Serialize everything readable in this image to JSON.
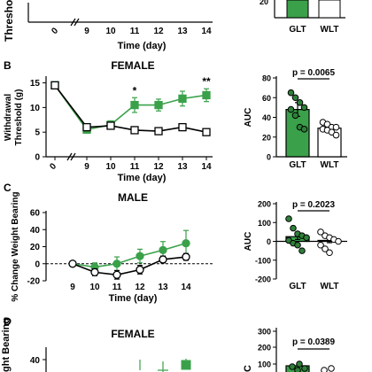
{
  "colors": {
    "glt": "#3aa14a",
    "wlt": "#ffffff",
    "axis": "#000000"
  },
  "panels": {
    "A": {
      "x_title": "Time (day)",
      "x_ticks": [
        "0",
        "9",
        "10",
        "11",
        "12",
        "13",
        "14"
      ],
      "y_label_fragment": "Threshold",
      "bar_y_tick": "20",
      "bar_labels": [
        "GLT",
        "WLT"
      ]
    },
    "B": {
      "letter": "B",
      "title": "FEMALE",
      "x_title": "Time (day)",
      "bar_labels": [
        "GLT",
        "WLT"
      ]
    },
    "C": {
      "letter": "C",
      "title": "MALE",
      "x_title": "Time (day)",
      "bar_labels": [
        "GLT",
        "WLT"
      ]
    },
    "D": {
      "letter": "D",
      "title": "FEMALE",
      "y_label_fragment": "ght Bearing",
      "bar_ylabel_fragment": "C"
    }
  },
  "chart_data": [
    {
      "id": "A-line",
      "type": "line",
      "x_ticks": [
        "0",
        "9",
        "10",
        "11",
        "12",
        "13",
        "14"
      ],
      "xlabel": "Time (day)",
      "ylabel": "Threshold"
    },
    {
      "id": "A-bar",
      "type": "bar",
      "categories": [
        "GLT",
        "WLT"
      ],
      "yticks": [
        20
      ]
    },
    {
      "id": "B-line",
      "type": "line",
      "title": "FEMALE",
      "xlabel": "Time (day)",
      "ylabel": "Withdrawal Threshold (g)",
      "x": [
        0,
        9,
        10,
        11,
        12,
        13,
        14
      ],
      "ylim": [
        0,
        16
      ],
      "yticks": [
        0,
        5,
        10,
        15
      ],
      "series": [
        {
          "values": [
            14.5,
            5.5,
            6.5,
            10.5,
            10.5,
            11.8,
            12.5
          ],
          "err": [
            0.5,
            0.5,
            0.8,
            1.5,
            1.2,
            1.5,
            1.3
          ]
        },
        {
          "values": [
            14.5,
            6.0,
            6.3,
            5.4,
            5.2,
            6.0,
            5.0
          ],
          "err": [
            0.4,
            0.4,
            0.5,
            0.4,
            0.3,
            0.4,
            0.6
          ]
        }
      ],
      "annotations": [
        {
          "x": 11,
          "text": "*"
        },
        {
          "x": 14,
          "text": "**"
        }
      ]
    },
    {
      "id": "B-bar",
      "type": "bar",
      "categories": [
        "GLT",
        "WLT"
      ],
      "values": [
        48,
        29
      ],
      "err": [
        7,
        3
      ],
      "ylabel": "AUC",
      "ylim": [
        0,
        80
      ],
      "yticks": [
        0,
        20,
        40,
        60,
        80
      ],
      "annotation": "p = 0.0065",
      "points": [
        [
          65,
          60,
          55,
          50,
          48,
          42,
          30,
          28
        ],
        [
          35,
          33,
          30,
          30,
          28,
          27,
          25,
          22
        ]
      ]
    },
    {
      "id": "C-line",
      "type": "line",
      "title": "MALE",
      "xlabel": "Time (day)",
      "ylabel": "% Change Weight Bearing",
      "x": [
        9,
        10,
        11,
        12,
        13,
        14
      ],
      "ylim": [
        -20,
        60
      ],
      "yticks": [
        -20,
        0,
        20,
        40,
        60
      ],
      "baseline": 0,
      "series": [
        {
          "values": [
            0,
            -4,
            0,
            9,
            16,
            24
          ],
          "err": [
            2,
            5,
            8,
            8,
            10,
            15
          ]
        },
        {
          "values": [
            0,
            -10,
            -13,
            -7,
            5,
            8
          ],
          "err": [
            2,
            4,
            5,
            5,
            4,
            4
          ]
        }
      ]
    },
    {
      "id": "C-bar",
      "type": "bar",
      "categories": [
        "GLT",
        "WLT"
      ],
      "values": [
        25,
        5
      ],
      "err": [
        15,
        12
      ],
      "ylabel": "AUC",
      "ylim": [
        -200,
        200
      ],
      "yticks": [
        -200,
        -100,
        0,
        100,
        200
      ],
      "annotation": "p = 0.2023",
      "points": [
        [
          120,
          70,
          40,
          30,
          20,
          5,
          -10,
          -20,
          -50
        ],
        [
          50,
          30,
          20,
          10,
          0,
          -20,
          -40,
          -60
        ]
      ]
    },
    {
      "id": "D-line",
      "type": "line",
      "title": "FEMALE",
      "ylabel": "ght Bearing",
      "yticks": [
        40
      ]
    },
    {
      "id": "D-bar",
      "type": "bar",
      "categories": [
        "GLT",
        "WLT"
      ],
      "ylabel": "C",
      "yticks": [
        100,
        200,
        300
      ],
      "annotation": "p = 0.0389"
    }
  ]
}
